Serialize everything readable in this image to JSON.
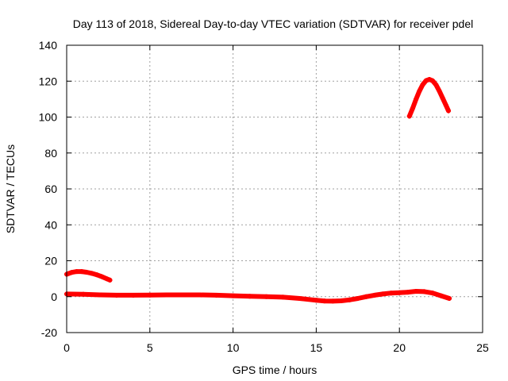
{
  "chart_data": {
    "type": "line",
    "title": "Day 113 of 2018, Sidereal Day-to-day VTEC variation (SDTVAR) for receiver pdel",
    "xlabel": "GPS time / hours",
    "ylabel": "SDTVAR / TECUs",
    "xlim": [
      0,
      25
    ],
    "ylim": [
      -20,
      140
    ],
    "xticks": [
      0,
      5,
      10,
      15,
      20,
      25
    ],
    "yticks": [
      -20,
      0,
      20,
      40,
      60,
      80,
      100,
      120,
      140
    ],
    "grid": true,
    "color": "#ff0000",
    "series": [
      {
        "name": "upper-arc-left",
        "x": [
          0.0,
          0.3,
          0.6,
          0.9,
          1.2,
          1.5,
          1.8,
          2.1,
          2.4,
          2.6
        ],
        "y": [
          12.5,
          13.5,
          14.0,
          14.0,
          13.6,
          13.0,
          12.2,
          11.2,
          10.0,
          9.2
        ]
      },
      {
        "name": "baseline",
        "x": [
          0.0,
          1.0,
          2.0,
          3.0,
          4.0,
          5.0,
          6.0,
          7.0,
          8.0,
          9.0,
          10.0,
          11.0,
          12.0,
          13.0,
          14.0,
          15.0,
          15.5,
          16.0,
          16.5,
          17.0,
          17.5,
          18.0,
          18.5,
          19.0,
          19.5,
          20.0,
          20.5,
          21.0,
          21.5,
          22.0,
          22.5,
          23.0
        ],
        "y": [
          1.5,
          1.3,
          1.0,
          0.8,
          0.8,
          0.9,
          1.0,
          1.0,
          1.0,
          0.8,
          0.5,
          0.2,
          0.0,
          -0.3,
          -1.0,
          -2.0,
          -2.4,
          -2.5,
          -2.3,
          -1.8,
          -1.0,
          0.0,
          0.8,
          1.5,
          2.0,
          2.2,
          2.5,
          3.0,
          2.8,
          2.0,
          0.5,
          -1.0
        ]
      },
      {
        "name": "upper-arc-right",
        "x": [
          20.6,
          20.8,
          21.0,
          21.2,
          21.4,
          21.6,
          21.8,
          22.0,
          22.2,
          22.4,
          22.6,
          22.8,
          22.95
        ],
        "y": [
          100.5,
          105.0,
          110.0,
          114.5,
          118.0,
          120.3,
          121.0,
          120.2,
          118.0,
          114.5,
          110.5,
          106.5,
          103.5
        ]
      }
    ]
  }
}
